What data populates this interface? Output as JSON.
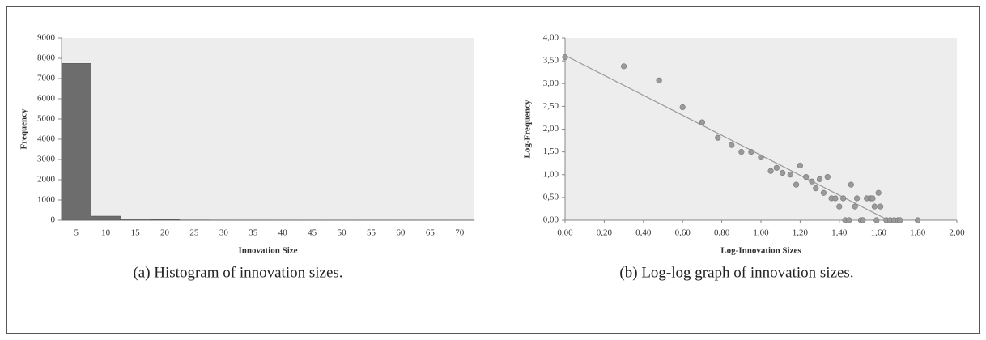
{
  "chart_data": [
    {
      "type": "bar",
      "caption": "(a) Histogram of innovation sizes.",
      "xlabel": "Innovation Size",
      "ylabel": "Frequency",
      "categories": [
        "5",
        "10",
        "15",
        "20",
        "25",
        "30",
        "35",
        "40",
        "45",
        "50",
        "55",
        "60",
        "65",
        "70"
      ],
      "values": [
        7750,
        200,
        70,
        30,
        12,
        8,
        6,
        5,
        4,
        3,
        3,
        2,
        2,
        2
      ],
      "color": "#6d6d6d",
      "ylim": [
        0,
        9000
      ],
      "yticks": [
        0,
        1000,
        2000,
        3000,
        4000,
        5000,
        6000,
        7000,
        8000,
        9000
      ]
    },
    {
      "type": "scatter",
      "caption": "(b) Log-log graph of innovation sizes.",
      "xlabel": "Log-Innovation Sizes",
      "ylabel": "Log-Frequency",
      "x": [
        0.0,
        0.3,
        0.48,
        0.6,
        0.7,
        0.78,
        0.85,
        0.9,
        0.95,
        1.0,
        1.05,
        1.08,
        1.11,
        1.15,
        1.18,
        1.2,
        1.23,
        1.26,
        1.28,
        1.3,
        1.32,
        1.34,
        1.36,
        1.38,
        1.4,
        1.42,
        1.43,
        1.45,
        1.46,
        1.48,
        1.49,
        1.51,
        1.52,
        1.54,
        1.56,
        1.57,
        1.58,
        1.59,
        1.6,
        1.61,
        1.64,
        1.66,
        1.68,
        1.7,
        1.71,
        1.8
      ],
      "y": [
        3.58,
        3.38,
        3.07,
        2.48,
        2.15,
        1.81,
        1.65,
        1.5,
        1.5,
        1.38,
        1.08,
        1.15,
        1.04,
        1.0,
        0.78,
        1.2,
        0.95,
        0.85,
        0.7,
        0.9,
        0.6,
        0.95,
        0.48,
        0.48,
        0.3,
        0.48,
        0,
        0,
        0.78,
        0.3,
        0.48,
        0,
        0,
        0.48,
        0.48,
        0.48,
        0.3,
        0,
        0.6,
        0.3,
        0,
        0,
        0,
        0,
        0,
        0
      ],
      "color": "#9a9a9a",
      "trendline": {
        "x": [
          0,
          1.65
        ],
        "y": [
          3.62,
          0
        ],
        "color": "#999999"
      },
      "xlim": [
        0,
        2
      ],
      "xticks": [
        {
          "value": 0,
          "label": "0,00"
        },
        {
          "value": 0.2,
          "label": "0,20"
        },
        {
          "value": 0.4,
          "label": "0,40"
        },
        {
          "value": 0.6,
          "label": "0,60"
        },
        {
          "value": 0.8,
          "label": "0,80"
        },
        {
          "value": 1,
          "label": "1,00"
        },
        {
          "value": 1.2,
          "label": "1,20"
        },
        {
          "value": 1.4,
          "label": "1,40"
        },
        {
          "value": 1.6,
          "label": "1,60"
        },
        {
          "value": 1.8,
          "label": "1,80"
        },
        {
          "value": 2,
          "label": "2,00"
        }
      ],
      "ylim": [
        0,
        4
      ],
      "yticks": [
        {
          "value": 0,
          "label": "0,00"
        },
        {
          "value": 0.5,
          "label": "0,50"
        },
        {
          "value": 1,
          "label": "1,00"
        },
        {
          "value": 1.5,
          "label": "1,50"
        },
        {
          "value": 2,
          "label": "2,00"
        },
        {
          "value": 2.5,
          "label": "2,50"
        },
        {
          "value": 3,
          "label": "3,00"
        },
        {
          "value": 3.5,
          "label": "3,50"
        },
        {
          "value": 4,
          "label": "4,00"
        }
      ]
    }
  ]
}
